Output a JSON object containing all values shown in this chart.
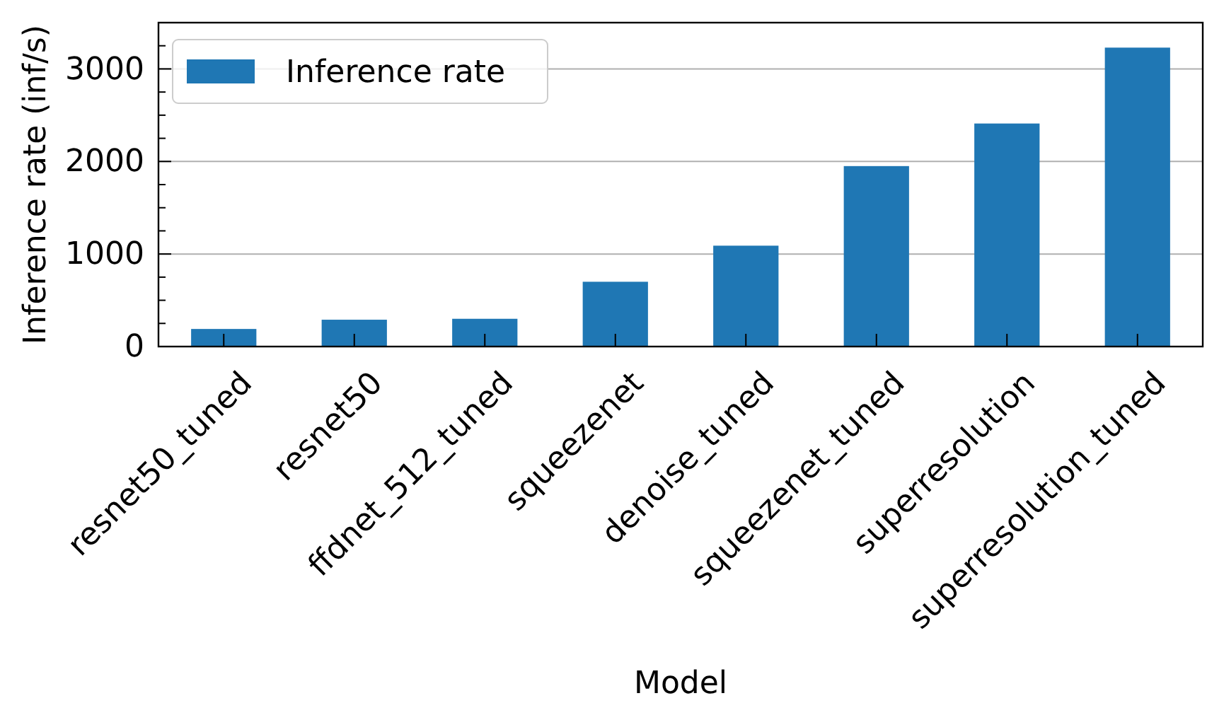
{
  "chart_data": {
    "type": "bar",
    "xlabel": "Model",
    "ylabel": "Inference rate (inf/s)",
    "categories": [
      "resnet50_tuned",
      "resnet50",
      "ffdnet_512_tuned",
      "squeezenet",
      "denoise_tuned",
      "squeezenet_tuned",
      "superresolution",
      "superresolution_tuned"
    ],
    "series": [
      {
        "name": "Inference rate",
        "color": "#1f77b4",
        "values": [
          190,
          290,
          300,
          700,
          1090,
          1950,
          2410,
          3230
        ]
      }
    ],
    "ylim": [
      0,
      3500
    ],
    "yticks": [
      0,
      {
        "value": 250,
        "label": null
      },
      {
        "value": 500,
        "label": null
      },
      {
        "value": 750,
        "label": null
      },
      1000,
      {
        "value": 1250,
        "label": null
      },
      {
        "value": 1500,
        "label": null
      },
      {
        "value": 1750,
        "label": null
      },
      2000,
      {
        "value": 2250,
        "label": null
      },
      {
        "value": 2500,
        "label": null
      },
      {
        "value": 2750,
        "label": null
      },
      3000,
      {
        "value": 3250,
        "label": null
      }
    ],
    "grid": "y",
    "legend": "top left"
  }
}
